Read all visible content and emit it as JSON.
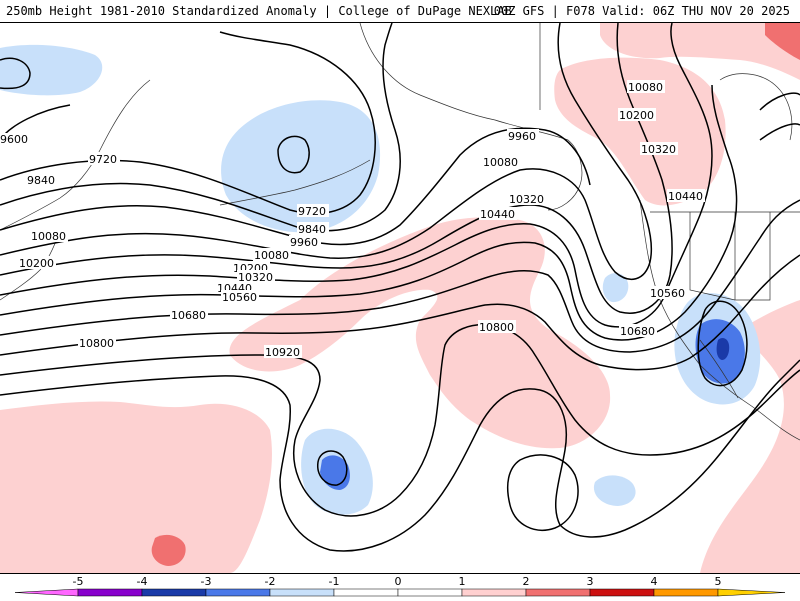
{
  "header": {
    "title": "250mb Height 1981-2010 Standardized Anomaly | College of DuPage NEXLAB",
    "run_info": "00Z GFS | F078 Valid: 06Z THU NOV 20 2025"
  },
  "contour_labels": {
    "l9600": "9600",
    "l9720a": "9720",
    "l9720b": "9720",
    "l9840a": "9840",
    "l9840b": "9840",
    "l9960a": "9960",
    "l9960b": "9960",
    "l10080a": "10080",
    "l10080b": "10080",
    "l10080c": "10080",
    "l10080d": "10080",
    "l10200a": "10200",
    "l10200b": "10200",
    "l10200c": "10200",
    "l10320a": "10320",
    "l10320b": "10320",
    "l10320c": "10320",
    "l10440a": "10440",
    "l10440b": "10440",
    "l10440c": "10440",
    "l10560a": "10560",
    "l10560b": "10560",
    "l10680a": "10680",
    "l10680b": "10680",
    "l10800a": "10800",
    "l10800b": "10800",
    "l10920": "10920"
  },
  "colorbar": {
    "ticks": [
      "-5",
      "-4",
      "-3",
      "-2",
      "-1",
      "0",
      "1",
      "2",
      "3",
      "4",
      "5"
    ],
    "colors": [
      "#ff66ff",
      "#8800cc",
      "#1a3aa8",
      "#4a78e8",
      "#c8e0fa",
      "#ffffff",
      "#ffffff",
      "#ffd0d0",
      "#f07070",
      "#cc1010",
      "#ff9900",
      "#ffd000"
    ]
  }
}
